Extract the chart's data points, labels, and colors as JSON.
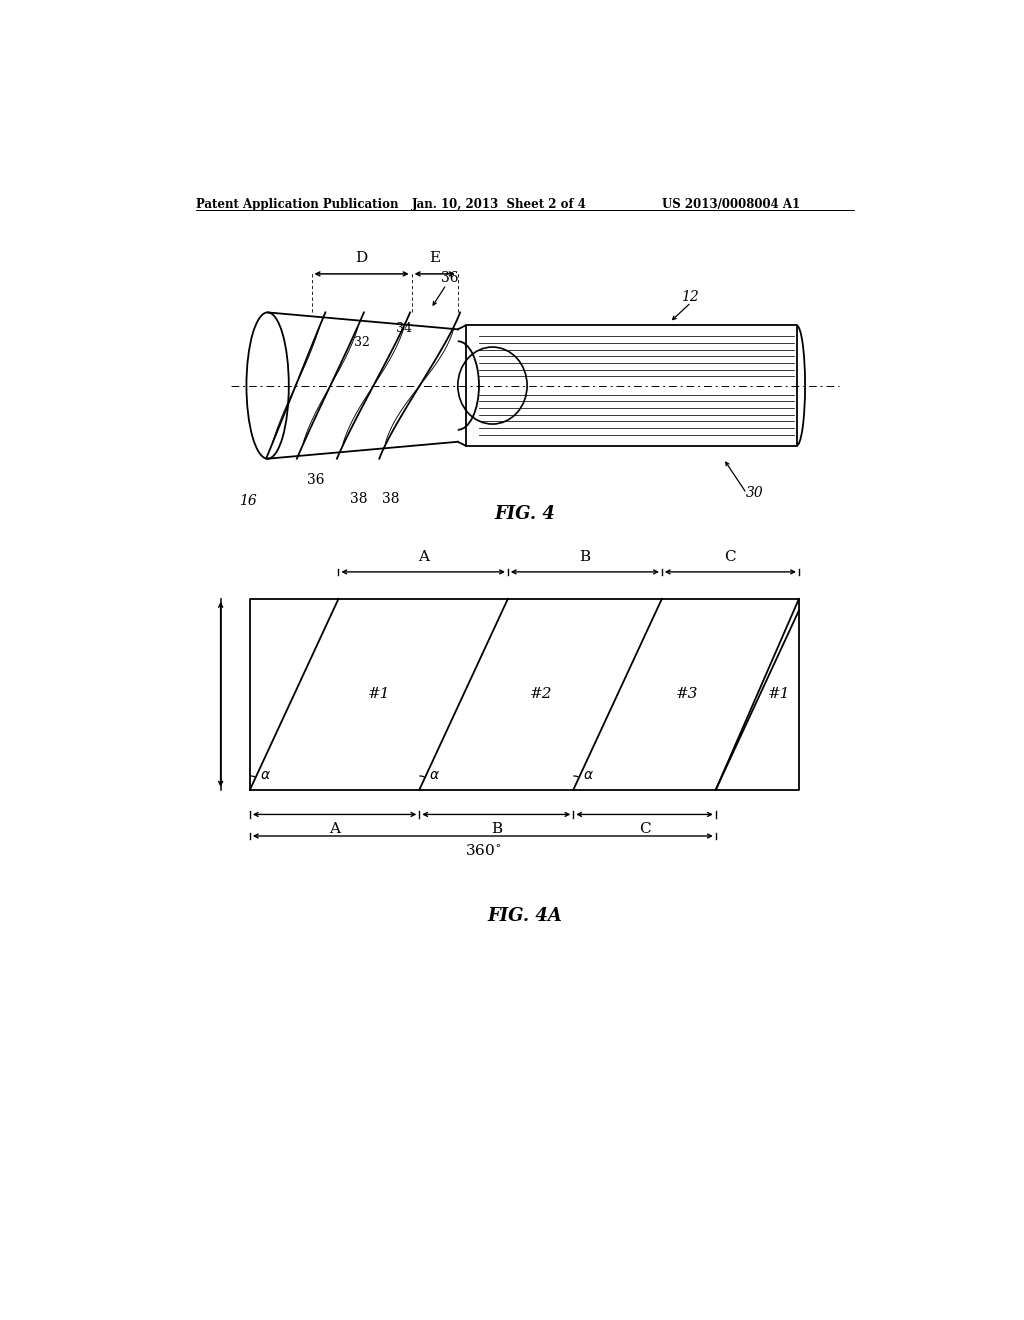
{
  "bg_color": "#ffffff",
  "header_text": "Patent Application Publication",
  "header_date": "Jan. 10, 2013  Sheet 2 of 4",
  "header_patent": "US 2013/0008004 A1",
  "fig4_caption": "FIG. 4",
  "fig4a_caption": "FIG. 4A",
  "line_color": "#000000"
}
